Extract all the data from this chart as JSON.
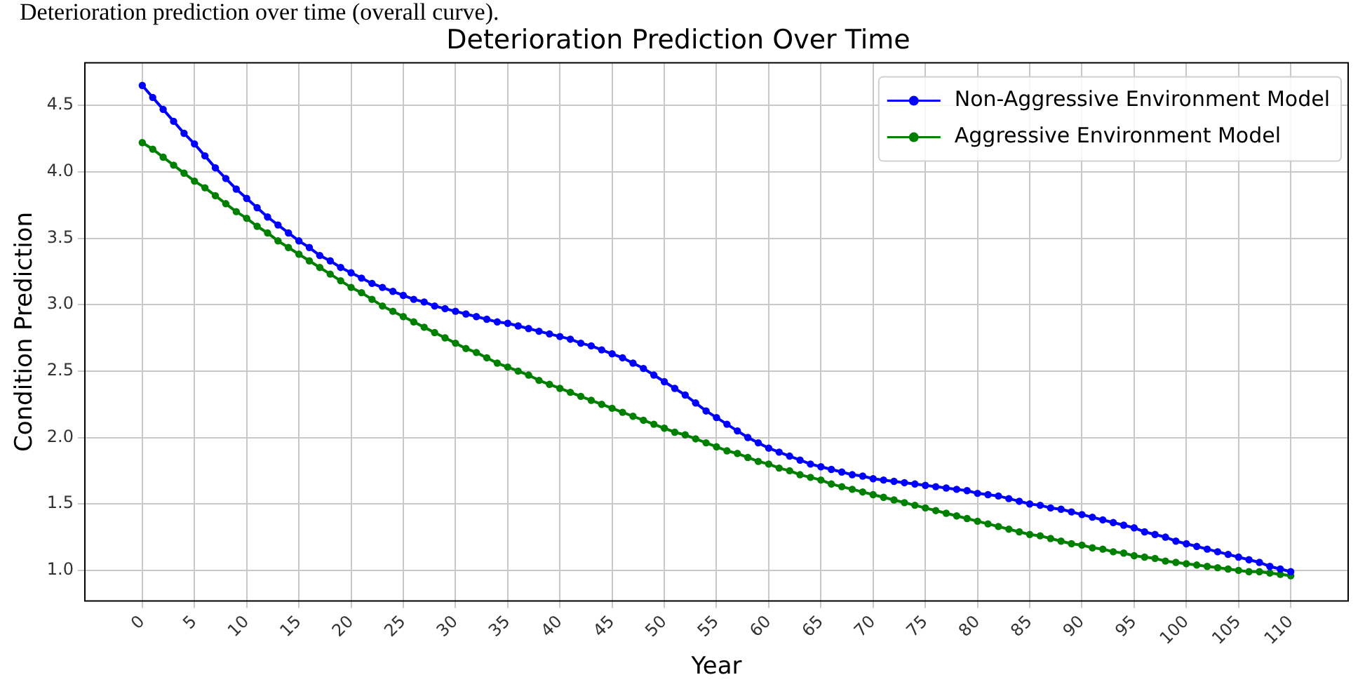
{
  "chart_data": {
    "type": "line",
    "title": "Deterioration Prediction Over Time",
    "xlabel": "Year",
    "ylabel": "Condition Prediction",
    "annotations": [
      "Deterioration prediction over time (overall curve)."
    ],
    "x": [
      0,
      1,
      2,
      3,
      4,
      5,
      6,
      7,
      8,
      9,
      10,
      11,
      12,
      13,
      14,
      15,
      16,
      17,
      18,
      19,
      20,
      21,
      22,
      23,
      24,
      25,
      26,
      27,
      28,
      29,
      30,
      31,
      32,
      33,
      34,
      35,
      36,
      37,
      38,
      39,
      40,
      41,
      42,
      43,
      44,
      45,
      46,
      47,
      48,
      49,
      50,
      51,
      52,
      53,
      54,
      55,
      56,
      57,
      58,
      59,
      60,
      61,
      62,
      63,
      64,
      65,
      66,
      67,
      68,
      69,
      70,
      71,
      72,
      73,
      74,
      75,
      76,
      77,
      78,
      79,
      80,
      81,
      82,
      83,
      84,
      85,
      86,
      87,
      88,
      89,
      90,
      91,
      92,
      93,
      94,
      95,
      96,
      97,
      98,
      99,
      100,
      101,
      102,
      103,
      104,
      105,
      106,
      107,
      108,
      109,
      110
    ],
    "series": [
      {
        "name": "Non-Aggressive Environment Model",
        "color": "#0000ff",
        "values": [
          4.65,
          4.56,
          4.47,
          4.38,
          4.29,
          4.21,
          4.12,
          4.03,
          3.95,
          3.87,
          3.8,
          3.73,
          3.66,
          3.6,
          3.54,
          3.48,
          3.43,
          3.37,
          3.33,
          3.28,
          3.24,
          3.2,
          3.16,
          3.13,
          3.1,
          3.07,
          3.04,
          3.02,
          2.99,
          2.97,
          2.95,
          2.93,
          2.91,
          2.89,
          2.87,
          2.86,
          2.84,
          2.82,
          2.8,
          2.78,
          2.76,
          2.74,
          2.71,
          2.69,
          2.66,
          2.63,
          2.6,
          2.56,
          2.52,
          2.47,
          2.42,
          2.37,
          2.32,
          2.26,
          2.2,
          2.15,
          2.1,
          2.05,
          2.0,
          1.96,
          1.92,
          1.89,
          1.86,
          1.83,
          1.8,
          1.78,
          1.76,
          1.74,
          1.72,
          1.71,
          1.69,
          1.68,
          1.67,
          1.66,
          1.65,
          1.64,
          1.63,
          1.62,
          1.61,
          1.6,
          1.58,
          1.57,
          1.56,
          1.54,
          1.52,
          1.5,
          1.49,
          1.47,
          1.46,
          1.44,
          1.42,
          1.4,
          1.38,
          1.36,
          1.34,
          1.32,
          1.29,
          1.27,
          1.25,
          1.22,
          1.2,
          1.18,
          1.16,
          1.14,
          1.12,
          1.1,
          1.08,
          1.06,
          1.03,
          1.01,
          0.99
        ]
      },
      {
        "name": "Aggressive Environment Model",
        "color": "#008000",
        "values": [
          4.22,
          4.17,
          4.11,
          4.05,
          3.99,
          3.93,
          3.88,
          3.82,
          3.76,
          3.7,
          3.65,
          3.59,
          3.54,
          3.48,
          3.43,
          3.38,
          3.33,
          3.28,
          3.23,
          3.18,
          3.13,
          3.09,
          3.04,
          2.99,
          2.95,
          2.91,
          2.87,
          2.83,
          2.79,
          2.75,
          2.71,
          2.67,
          2.64,
          2.6,
          2.56,
          2.53,
          2.5,
          2.47,
          2.43,
          2.4,
          2.37,
          2.34,
          2.31,
          2.28,
          2.25,
          2.22,
          2.19,
          2.16,
          2.13,
          2.1,
          2.07,
          2.04,
          2.02,
          1.99,
          1.96,
          1.93,
          1.9,
          1.88,
          1.85,
          1.82,
          1.8,
          1.77,
          1.75,
          1.72,
          1.7,
          1.68,
          1.65,
          1.63,
          1.61,
          1.59,
          1.57,
          1.55,
          1.53,
          1.51,
          1.49,
          1.47,
          1.45,
          1.43,
          1.41,
          1.39,
          1.37,
          1.35,
          1.33,
          1.31,
          1.29,
          1.27,
          1.26,
          1.24,
          1.22,
          1.2,
          1.19,
          1.17,
          1.16,
          1.14,
          1.13,
          1.11,
          1.1,
          1.09,
          1.07,
          1.06,
          1.05,
          1.04,
          1.03,
          1.02,
          1.01,
          1.0,
          0.99,
          0.99,
          0.98,
          0.97,
          0.96
        ]
      }
    ],
    "xlim": [
      -5.5,
      115.5
    ],
    "xticks": [
      0,
      5,
      10,
      15,
      20,
      25,
      30,
      35,
      40,
      45,
      50,
      55,
      60,
      65,
      70,
      75,
      80,
      85,
      90,
      95,
      100,
      105,
      110
    ],
    "ylim": [
      0.77,
      4.82
    ],
    "yticks": [
      {
        "value": 1,
        "label": "1.0"
      },
      1.5,
      {
        "value": 2,
        "label": "2.0"
      },
      2.5,
      {
        "value": 3,
        "label": "3.0"
      },
      3.5,
      {
        "value": 4,
        "label": "4.0"
      },
      4.5
    ],
    "grid": true,
    "legend": "top right",
    "marker": "circle",
    "line_style": "solid"
  }
}
